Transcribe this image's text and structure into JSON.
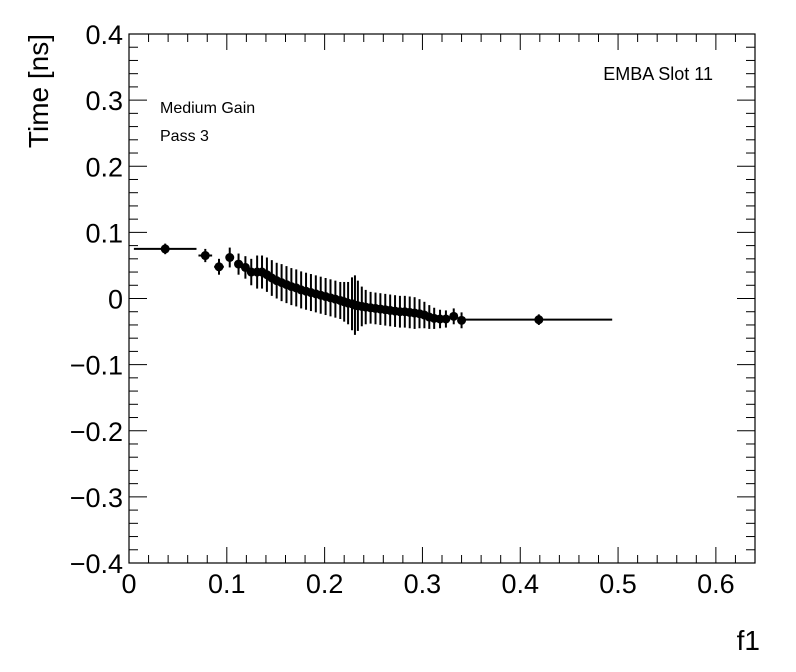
{
  "chart_data": {
    "type": "scatter",
    "xlabel": "f1",
    "ylabel": "Time [ns]",
    "xlim": [
      0,
      0.64
    ],
    "ylim": [
      -0.4,
      0.4
    ],
    "x_ticks": [
      "0",
      "0.1",
      "0.2",
      "0.3",
      "0.4",
      "0.5",
      "0.6"
    ],
    "y_ticks": [
      "0.4",
      "0.3",
      "0.2",
      "0.1",
      "0",
      "−0.1",
      "−0.2",
      "−0.3",
      "−0.4"
    ],
    "annotations": {
      "top_right": "EMBA Slot 11",
      "line1": "Medium Gain",
      "line2": "Pass 3"
    },
    "grid": false,
    "color": "#000000",
    "series": [
      {
        "points": [
          {
            "x": 0.037,
            "y": 0.075,
            "xerr": 0.032,
            "yerr": 0.008
          },
          {
            "x": 0.078,
            "y": 0.065,
            "xerr": 0.007,
            "yerr": 0.01
          },
          {
            "x": 0.092,
            "y": 0.048,
            "xerr": 0.005,
            "yerr": 0.012
          },
          {
            "x": 0.103,
            "y": 0.062,
            "xerr": 0.004,
            "yerr": 0.015
          },
          {
            "x": 0.112,
            "y": 0.052,
            "xerr": 0.003,
            "yerr": 0.016
          },
          {
            "x": 0.119,
            "y": 0.047,
            "xerr": 0.003,
            "yerr": 0.017
          },
          {
            "x": 0.125,
            "y": 0.04,
            "xerr": 0.002,
            "yerr": 0.02
          },
          {
            "x": 0.131,
            "y": 0.04,
            "xerr": 0.002,
            "yerr": 0.025
          },
          {
            "x": 0.136,
            "y": 0.04,
            "xerr": 0.002,
            "yerr": 0.025
          },
          {
            "x": 0.141,
            "y": 0.036,
            "xerr": 0.002,
            "yerr": 0.026
          },
          {
            "x": 0.146,
            "y": 0.031,
            "xerr": 0.002,
            "yerr": 0.027
          },
          {
            "x": 0.151,
            "y": 0.027,
            "xerr": 0.002,
            "yerr": 0.027
          },
          {
            "x": 0.156,
            "y": 0.024,
            "xerr": 0.002,
            "yerr": 0.028
          },
          {
            "x": 0.161,
            "y": 0.021,
            "xerr": 0.002,
            "yerr": 0.028
          },
          {
            "x": 0.166,
            "y": 0.018,
            "xerr": 0.002,
            "yerr": 0.028
          },
          {
            "x": 0.171,
            "y": 0.016,
            "xerr": 0.002,
            "yerr": 0.028
          },
          {
            "x": 0.176,
            "y": 0.013,
            "xerr": 0.002,
            "yerr": 0.028
          },
          {
            "x": 0.181,
            "y": 0.011,
            "xerr": 0.002,
            "yerr": 0.028
          },
          {
            "x": 0.186,
            "y": 0.009,
            "xerr": 0.002,
            "yerr": 0.028
          },
          {
            "x": 0.191,
            "y": 0.007,
            "xerr": 0.002,
            "yerr": 0.028
          },
          {
            "x": 0.196,
            "y": 0.005,
            "xerr": 0.002,
            "yerr": 0.028
          },
          {
            "x": 0.201,
            "y": 0.003,
            "xerr": 0.002,
            "yerr": 0.028
          },
          {
            "x": 0.206,
            "y": 0.001,
            "xerr": 0.002,
            "yerr": 0.028
          },
          {
            "x": 0.211,
            "y": -0.001,
            "xerr": 0.002,
            "yerr": 0.028
          },
          {
            "x": 0.216,
            "y": -0.003,
            "xerr": 0.002,
            "yerr": 0.028
          },
          {
            "x": 0.22,
            "y": -0.005,
            "xerr": 0.001,
            "yerr": 0.03
          },
          {
            "x": 0.224,
            "y": -0.007,
            "xerr": 0.001,
            "yerr": 0.032
          },
          {
            "x": 0.228,
            "y": -0.008,
            "xerr": 0.001,
            "yerr": 0.04
          },
          {
            "x": 0.231,
            "y": -0.01,
            "xerr": 0.001,
            "yerr": 0.045
          },
          {
            "x": 0.234,
            "y": -0.011,
            "xerr": 0.001,
            "yerr": 0.038
          },
          {
            "x": 0.238,
            "y": -0.012,
            "xerr": 0.001,
            "yerr": 0.03
          },
          {
            "x": 0.242,
            "y": -0.013,
            "xerr": 0.002,
            "yerr": 0.026
          },
          {
            "x": 0.247,
            "y": -0.014,
            "xerr": 0.002,
            "yerr": 0.024
          },
          {
            "x": 0.252,
            "y": -0.015,
            "xerr": 0.002,
            "yerr": 0.024
          },
          {
            "x": 0.257,
            "y": -0.016,
            "xerr": 0.002,
            "yerr": 0.024
          },
          {
            "x": 0.262,
            "y": -0.017,
            "xerr": 0.002,
            "yerr": 0.024
          },
          {
            "x": 0.267,
            "y": -0.018,
            "xerr": 0.002,
            "yerr": 0.024
          },
          {
            "x": 0.272,
            "y": -0.019,
            "xerr": 0.002,
            "yerr": 0.024
          },
          {
            "x": 0.277,
            "y": -0.02,
            "xerr": 0.002,
            "yerr": 0.024
          },
          {
            "x": 0.282,
            "y": -0.02,
            "xerr": 0.002,
            "yerr": 0.024
          },
          {
            "x": 0.287,
            "y": -0.021,
            "xerr": 0.002,
            "yerr": 0.024
          },
          {
            "x": 0.292,
            "y": -0.022,
            "xerr": 0.002,
            "yerr": 0.024
          },
          {
            "x": 0.297,
            "y": -0.023,
            "xerr": 0.002,
            "yerr": 0.022
          },
          {
            "x": 0.302,
            "y": -0.025,
            "xerr": 0.002,
            "yerr": 0.02
          },
          {
            "x": 0.307,
            "y": -0.028,
            "xerr": 0.002,
            "yerr": 0.018
          },
          {
            "x": 0.312,
            "y": -0.03,
            "xerr": 0.002,
            "yerr": 0.016
          },
          {
            "x": 0.318,
            "y": -0.031,
            "xerr": 0.002,
            "yerr": 0.014
          },
          {
            "x": 0.324,
            "y": -0.031,
            "xerr": 0.003,
            "yerr": 0.013
          },
          {
            "x": 0.332,
            "y": -0.027,
            "xerr": 0.004,
            "yerr": 0.012
          },
          {
            "x": 0.34,
            "y": -0.033,
            "xerr": 0.003,
            "yerr": 0.012
          },
          {
            "x": 0.419,
            "y": -0.032,
            "xerr": 0.075,
            "yerr": 0.008
          }
        ]
      }
    ]
  }
}
